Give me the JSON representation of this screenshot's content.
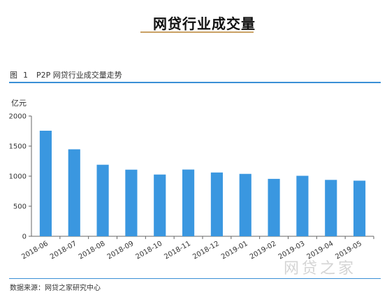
{
  "header": {
    "title": "网贷行业成交量"
  },
  "caption": {
    "prefix": "图",
    "number": "1",
    "text": "P2P 网贷行业成交量走势"
  },
  "unit": "亿元",
  "source": "数据来源：网贷之家研究中心",
  "watermark": "网贷之家",
  "colors": {
    "bar": "#3a97e0",
    "rule": "#3a8fd6",
    "accent": "#c9a063"
  },
  "chart_data": {
    "type": "bar",
    "title": "P2P 网贷行业成交量走势",
    "ylabel": "亿元",
    "xlabel": "",
    "categories": [
      "2018-06",
      "2018-07",
      "2018-08",
      "2018-09",
      "2018-10",
      "2018-11",
      "2018-12",
      "2019-01",
      "2019-02",
      "2019-03",
      "2019-04",
      "2019-05"
    ],
    "values": [
      1756,
      1447,
      1190,
      1108,
      1027,
      1110,
      1061,
      1038,
      955,
      1006,
      938,
      925
    ],
    "ylim": [
      0,
      2000
    ],
    "yticks": [
      0,
      500,
      1000,
      1500,
      2000
    ],
    "grid": false,
    "legend": "none"
  }
}
